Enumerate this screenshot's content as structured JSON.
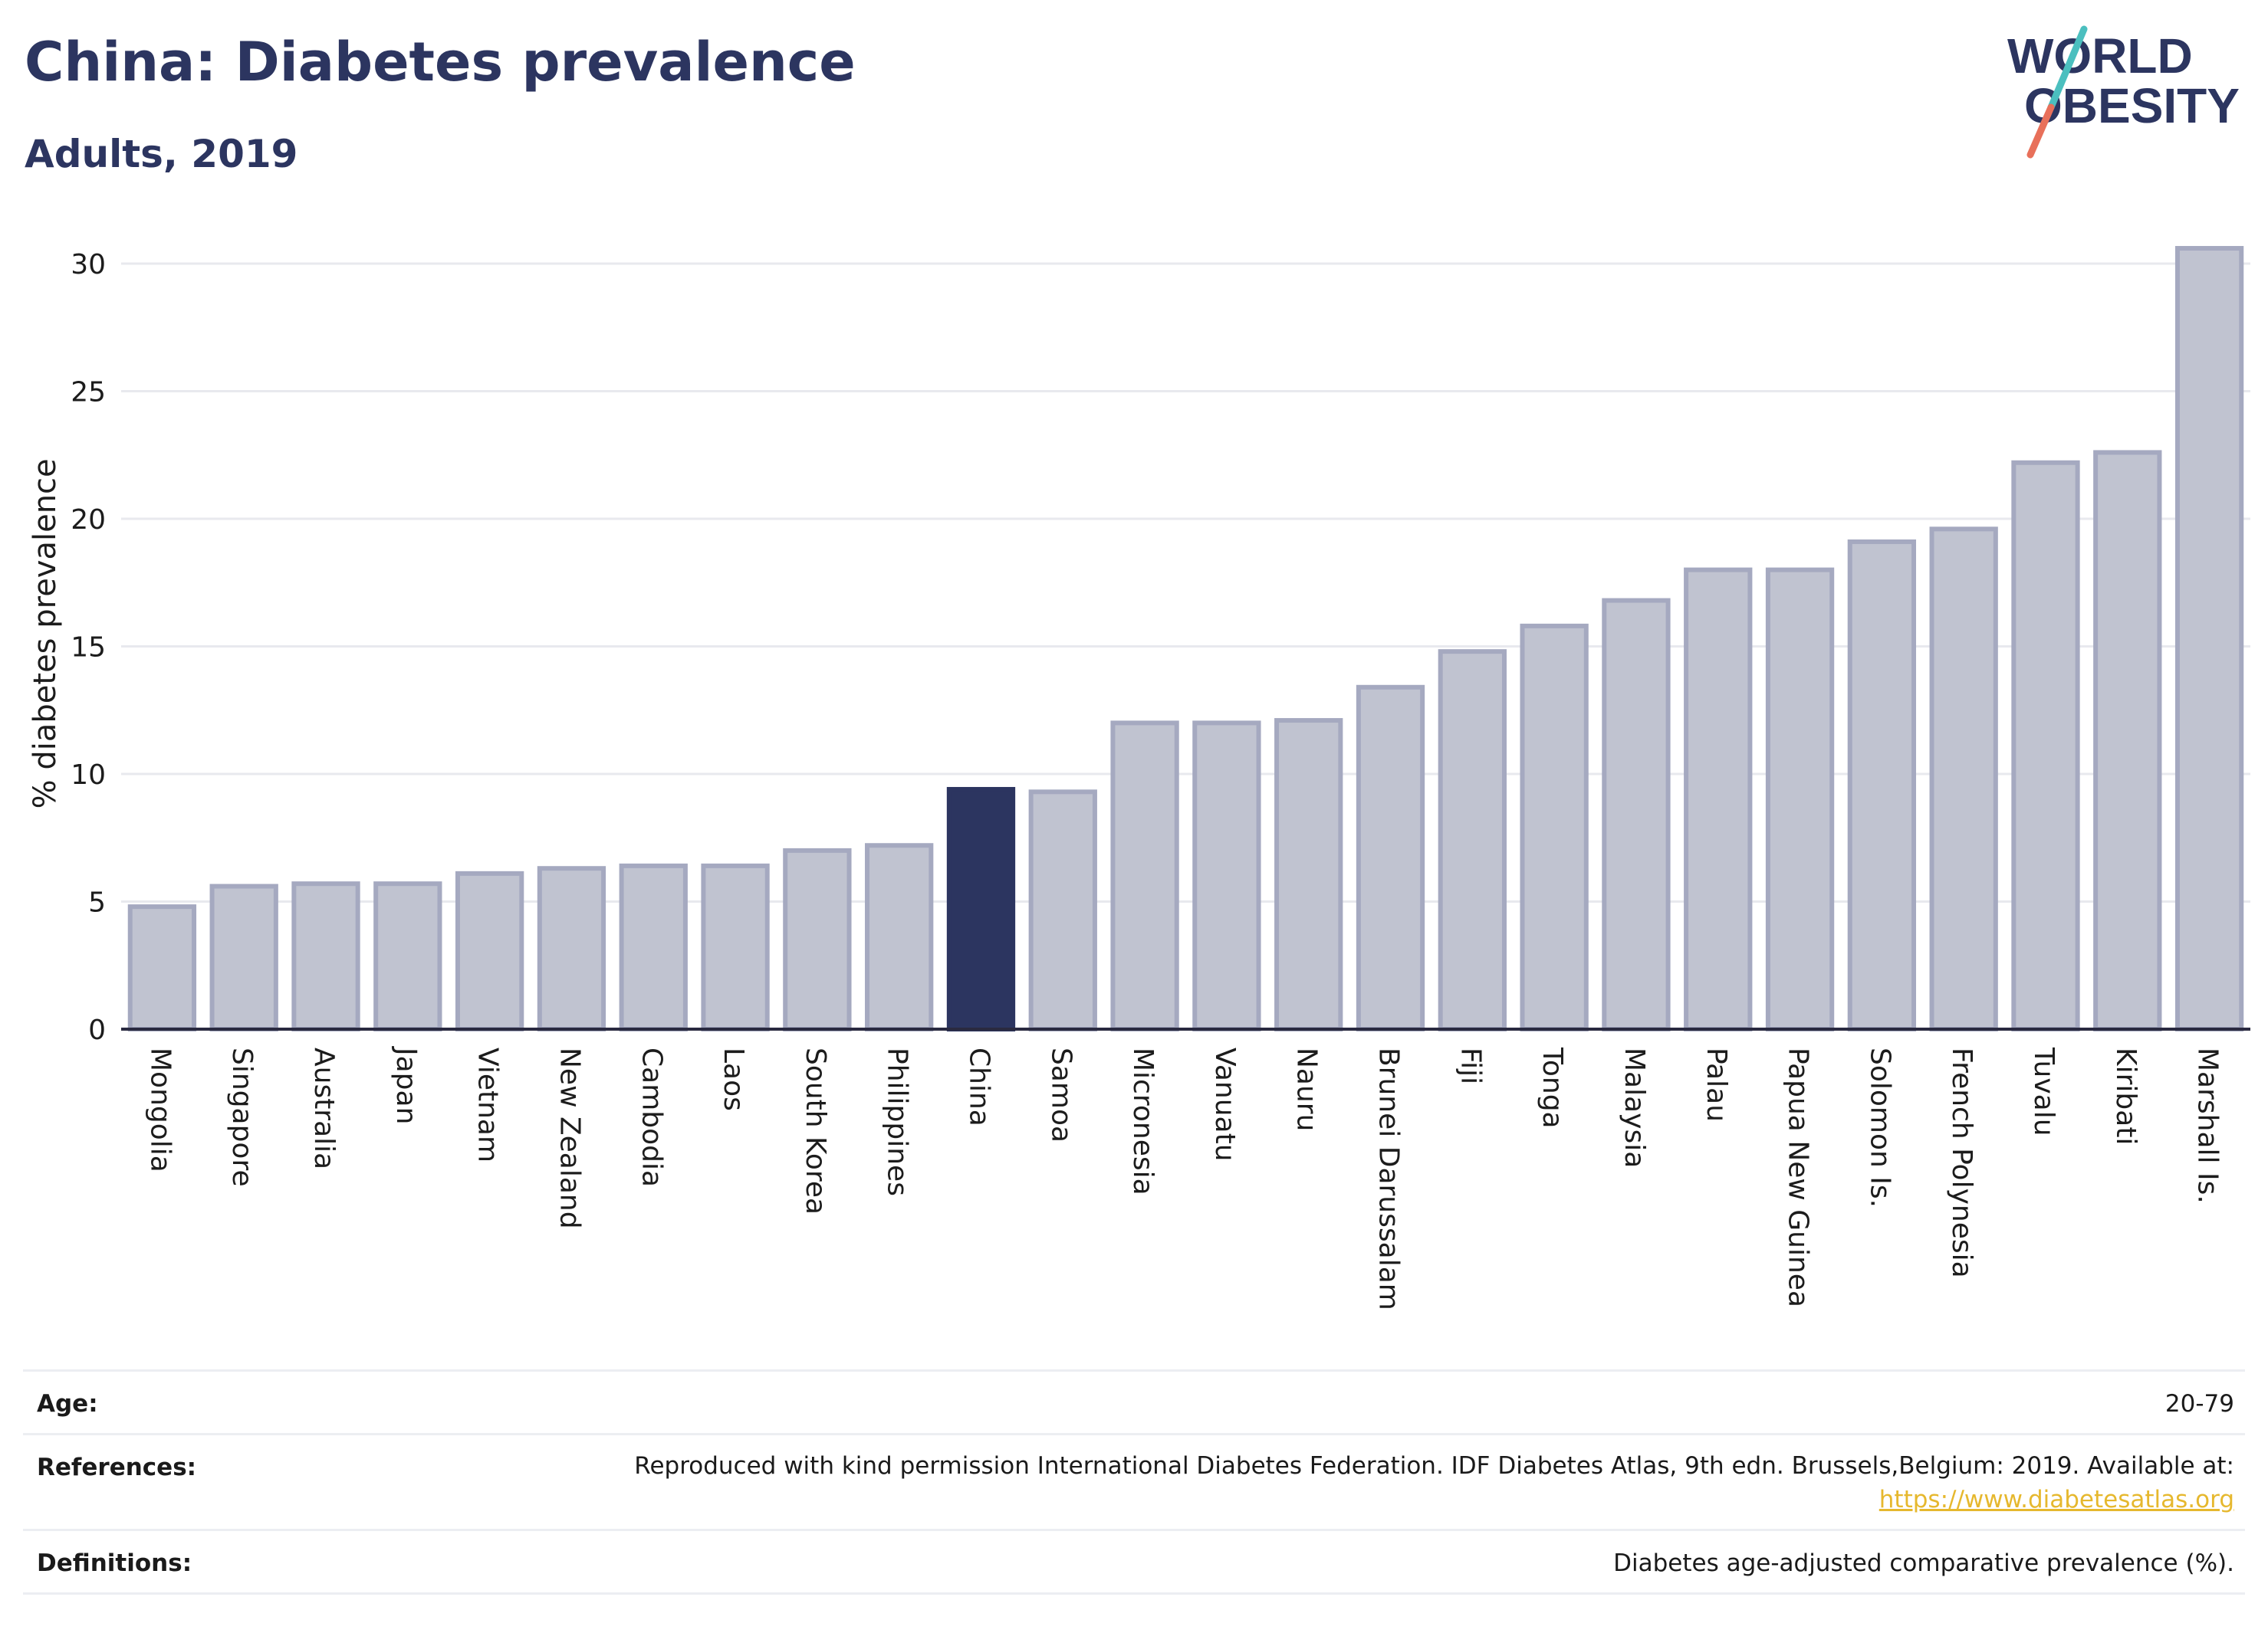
{
  "title": "China: Diabetes prevalence",
  "subtitle": "Adults, 2019",
  "logo": {
    "line1": "WORLD",
    "line2": "OBESITY"
  },
  "colors": {
    "highlight": "#2c3560",
    "bar": "#c0c3d0",
    "bar_border": "#a5a9c0",
    "axis": "#2a2a40",
    "grid": "#e8e9ee",
    "logo_teal": "#4bbfbf",
    "logo_coral": "#e8705a"
  },
  "chart_data": {
    "type": "bar",
    "title": "China: Diabetes prevalence",
    "subtitle": "Adults, 2019",
    "xlabel": "",
    "ylabel": "% diabetes prevalence",
    "ylim": [
      0,
      31
    ],
    "yticks": [
      0,
      5,
      10,
      15,
      20,
      25,
      30
    ],
    "highlight": "China",
    "grid": true,
    "categories": [
      "Mongolia",
      "Singapore",
      "Australia",
      "Japan",
      "Vietnam",
      "New Zealand",
      "Cambodia",
      "Laos",
      "South Korea",
      "Philippines",
      "China",
      "Samoa",
      "Micronesia",
      "Vanuatu",
      "Nauru",
      "Brunei Darussalam",
      "Fiji",
      "Tonga",
      "Malaysia",
      "Palau",
      "Papua New Guinea",
      "Solomon Is.",
      "French Polynesia",
      "Tuvalu",
      "Kiribati",
      "Marshall Is."
    ],
    "values": [
      4.8,
      5.6,
      5.7,
      5.7,
      6.1,
      6.3,
      6.4,
      6.4,
      7.0,
      7.2,
      9.4,
      9.3,
      12.0,
      12.0,
      12.1,
      13.4,
      14.8,
      15.8,
      16.8,
      18.0,
      18.0,
      19.1,
      19.6,
      22.2,
      22.6,
      30.6
    ]
  },
  "info": {
    "age": {
      "label": "Age:",
      "value": "20-79"
    },
    "references": {
      "label": "References:",
      "value": "Reproduced with kind permission International Diabetes Federation. IDF Diabetes Atlas, 9th edn. Brussels,Belgium: 2019. Available at:",
      "link": "https://www.diabetesatlas.org"
    },
    "definitions": {
      "label": "Definitions:",
      "value": "Diabetes age-adjusted comparative prevalence (%)."
    }
  }
}
